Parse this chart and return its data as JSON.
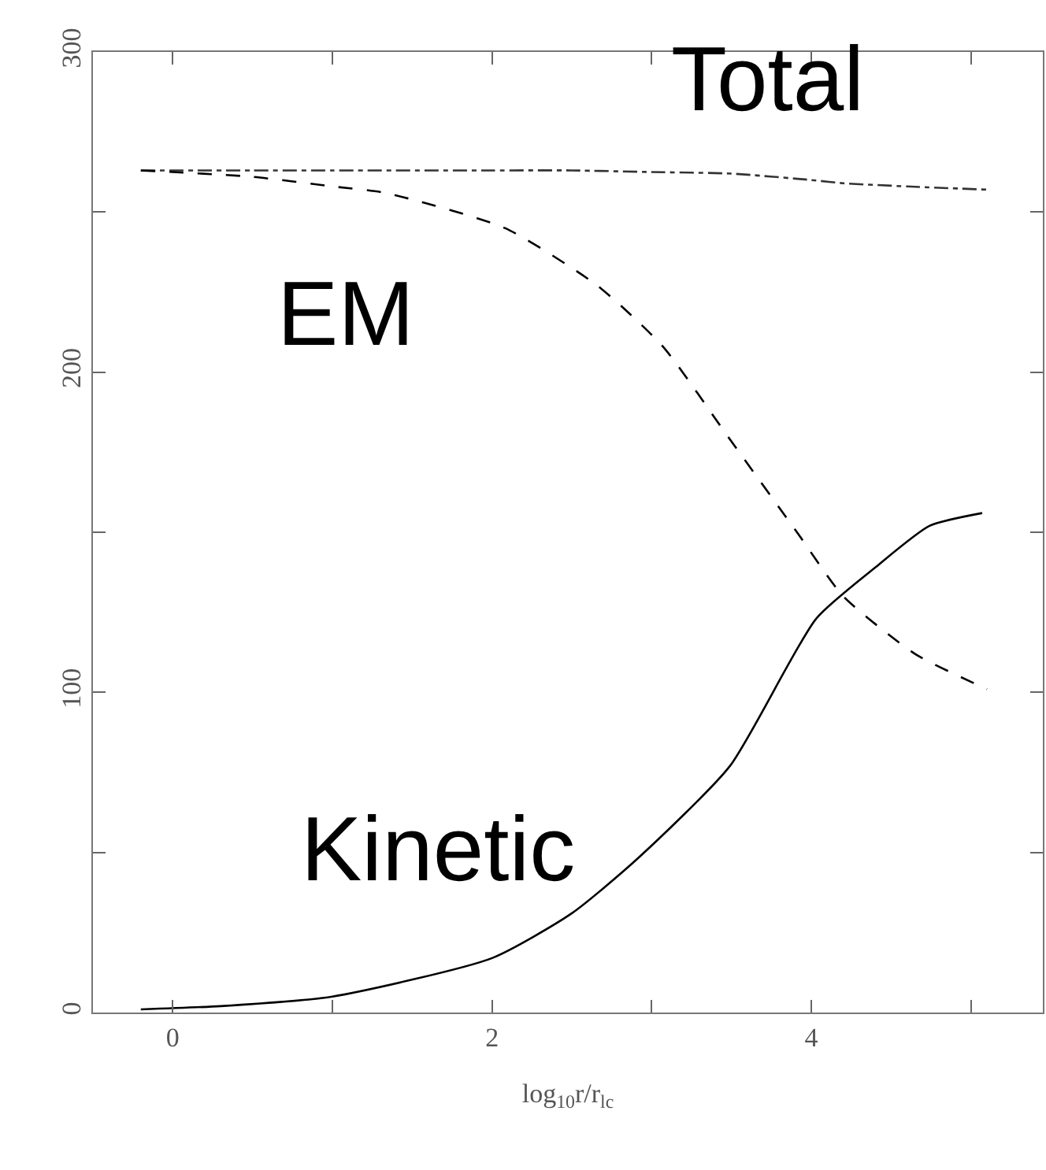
{
  "chart_data": {
    "type": "line",
    "xlabel": "log$_{10}$r/r$_{lc}$",
    "xlim": [
      -0.5,
      5.45
    ],
    "ylim": [
      0,
      300
    ],
    "xticks": [
      0,
      {
        "value": 1,
        "label": null
      },
      2,
      {
        "value": 3,
        "label": null
      },
      4,
      {
        "value": 5,
        "label": null
      }
    ],
    "yticks": [
      0,
      {
        "value": 50,
        "label": null
      },
      100,
      {
        "value": 150,
        "label": null
      },
      200,
      {
        "value": 250,
        "label": null
      },
      300
    ],
    "grid": false,
    "legend": false,
    "marker": "none",
    "series": [
      {
        "name": "Total",
        "color": "#333333",
        "line_style": "dashdot",
        "x": [
          -0.2,
          0.5,
          1,
          2,
          2.5,
          3,
          3.5,
          4,
          4.2,
          4.6,
          5.1
        ],
        "values": [
          263,
          263,
          263,
          263,
          263,
          262.5,
          262,
          260,
          259,
          258,
          257
        ]
      },
      {
        "name": "EM",
        "color": "#000000",
        "line_style": "dashed",
        "x": [
          -0.2,
          0.5,
          1,
          1.33,
          2.08,
          2.66,
          3.07,
          3.49,
          3.91,
          4.2,
          4.65,
          5.1
        ],
        "values": [
          263,
          261,
          258,
          256,
          245,
          227,
          208,
          179,
          150,
          130,
          112,
          101
        ]
      },
      {
        "name": "Kinetic",
        "color": "#000000",
        "line_style": "solid",
        "x": [
          -0.2,
          0.3,
          1,
          2,
          2.5,
          2.91,
          3.49,
          4.03,
          4.4,
          4.74,
          5.07
        ],
        "values": [
          1,
          2,
          5,
          17,
          31,
          48,
          77,
          123,
          139,
          152,
          156
        ]
      }
    ]
  }
}
